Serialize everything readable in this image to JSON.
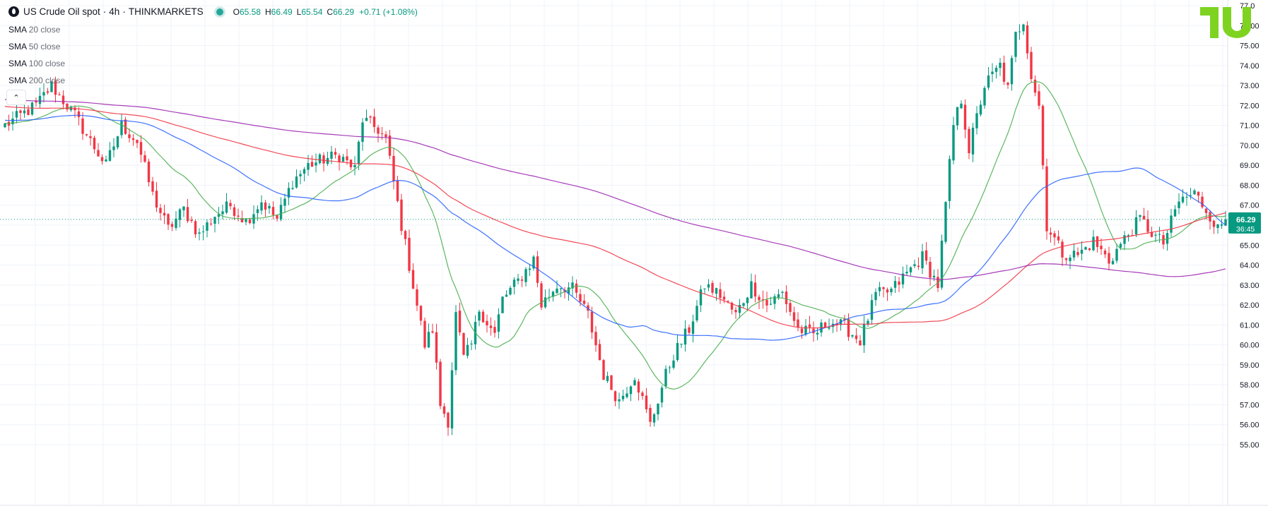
{
  "header": {
    "symbol": "US Crude Oil spot",
    "interval": "4h",
    "exchange": "THINKMARKETS",
    "open_label": "O",
    "open": "65.58",
    "high_label": "H",
    "high": "66.49",
    "low_label": "L",
    "low": "65.54",
    "close_label": "C",
    "close": "66.29",
    "change": "+0.71 (+1.08%)"
  },
  "indicators": [
    {
      "name": "SMA",
      "params": "20 close"
    },
    {
      "name": "SMA",
      "params": "50 close"
    },
    {
      "name": "SMA",
      "params": "100 close"
    },
    {
      "name": "SMA",
      "params": "200 close"
    }
  ],
  "price_label": {
    "price": "66.29",
    "countdown": "36:45"
  },
  "colors": {
    "up": "#089981",
    "down": "#f23645",
    "sma20": "#4caf50",
    "sma50": "#2962ff",
    "sma100": "#f23645",
    "sma200": "#9c27b0",
    "last_price": "#089981",
    "grid": "#f0f3fa"
  },
  "chart_data": {
    "type": "candlestick",
    "ylim": [
      54.5,
      77.2
    ],
    "y_ticks": [
      "55.00",
      "56.00",
      "57.00",
      "58.00",
      "59.00",
      "60.00",
      "61.00",
      "62.00",
      "63.00",
      "64.00",
      "65.00",
      "66.00",
      "67.00",
      "68.00",
      "69.00",
      "70.00",
      "71.00",
      "72.00",
      "73.00",
      "74.00",
      "75.00",
      "76.00",
      "77.0"
    ],
    "last_price": 66.29,
    "path_anchors": [
      [
        0,
        71.0
      ],
      [
        8,
        72.0
      ],
      [
        12,
        73.0
      ],
      [
        18,
        71.5
      ],
      [
        22,
        70.2
      ],
      [
        26,
        69.0
      ],
      [
        30,
        71.0
      ],
      [
        34,
        70.2
      ],
      [
        38,
        67.5
      ],
      [
        42,
        65.8
      ],
      [
        46,
        66.8
      ],
      [
        50,
        65.5
      ],
      [
        54,
        66.5
      ],
      [
        58,
        67.0
      ],
      [
        62,
        66.2
      ],
      [
        66,
        67.2
      ],
      [
        70,
        66.3
      ],
      [
        74,
        68.2
      ],
      [
        78,
        69.0
      ],
      [
        82,
        69.3
      ],
      [
        86,
        69.5
      ],
      [
        90,
        68.8
      ],
      [
        92,
        71.3
      ],
      [
        96,
        70.8
      ],
      [
        98,
        70.3
      ],
      [
        102,
        66.0
      ],
      [
        106,
        62.0
      ],
      [
        108,
        60.0
      ],
      [
        110,
        60.8
      ],
      [
        112,
        57.0
      ],
      [
        114,
        56.2
      ],
      [
        116,
        61.5
      ],
      [
        118,
        59.3
      ],
      [
        120,
        60.0
      ],
      [
        122,
        61.8
      ],
      [
        126,
        60.5
      ],
      [
        128,
        62.3
      ],
      [
        132,
        63.2
      ],
      [
        136,
        64.3
      ],
      [
        138,
        62.0
      ],
      [
        142,
        63.0
      ],
      [
        146,
        62.8
      ],
      [
        150,
        61.5
      ],
      [
        154,
        58.5
      ],
      [
        158,
        57.2
      ],
      [
        162,
        58.5
      ],
      [
        166,
        56.0
      ],
      [
        170,
        58.5
      ],
      [
        172,
        59.5
      ],
      [
        176,
        60.8
      ],
      [
        180,
        63.0
      ],
      [
        184,
        62.5
      ],
      [
        188,
        61.5
      ],
      [
        192,
        63.0
      ],
      [
        196,
        62.0
      ],
      [
        200,
        62.6
      ],
      [
        204,
        60.8
      ],
      [
        208,
        60.5
      ],
      [
        212,
        61.2
      ],
      [
        216,
        60.9
      ],
      [
        220,
        60.2
      ],
      [
        224,
        62.5
      ],
      [
        228,
        62.7
      ],
      [
        232,
        63.6
      ],
      [
        236,
        64.4
      ],
      [
        240,
        63.0
      ],
      [
        242,
        67.0
      ],
      [
        244,
        71.0
      ],
      [
        246,
        72.3
      ],
      [
        248,
        69.8
      ],
      [
        252,
        73.0
      ],
      [
        256,
        74.0
      ],
      [
        258,
        72.8
      ],
      [
        260,
        75.5
      ],
      [
        262,
        76.3
      ],
      [
        264,
        73.5
      ],
      [
        266,
        72.0
      ],
      [
        268,
        66.0
      ],
      [
        272,
        64.6
      ],
      [
        276,
        64.5
      ],
      [
        280,
        65.2
      ],
      [
        284,
        64.2
      ],
      [
        288,
        65.3
      ],
      [
        292,
        66.3
      ],
      [
        296,
        65.4
      ],
      [
        298,
        65.1
      ],
      [
        302,
        67.2
      ],
      [
        306,
        67.6
      ],
      [
        310,
        66.5
      ],
      [
        312,
        65.8
      ],
      [
        314,
        66.29
      ]
    ],
    "candle_count": 315,
    "sma_periods": [
      20,
      50,
      100,
      200
    ],
    "sma200_seed": 73.5,
    "sma100_seed": 72.8
  }
}
